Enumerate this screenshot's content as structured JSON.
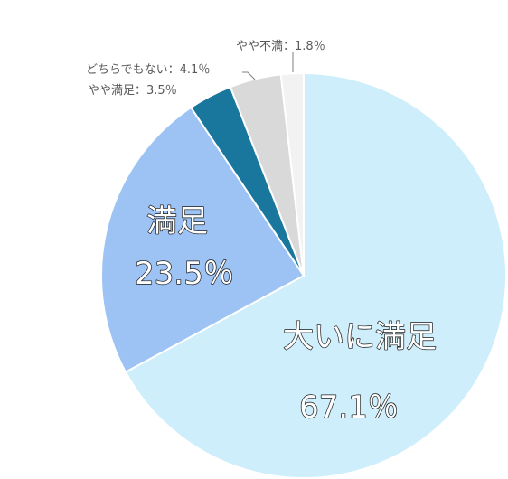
{
  "chart_data": {
    "type": "pie",
    "start_angle_deg": 0,
    "direction": "clockwise",
    "slices": [
      {
        "label": "大いに満足",
        "value": 67.1,
        "display": "67.1％",
        "color": "#cdeefa"
      },
      {
        "label": "満足",
        "value": 23.5,
        "display": "23.5％",
        "color": "#9dc3f4"
      },
      {
        "label": "やや満足",
        "value": 3.5,
        "display": "3.5％",
        "color": "#19769d"
      },
      {
        "label": "どちらでもない",
        "value": 4.1,
        "display": "4.1％",
        "color": "#d9d9d9"
      },
      {
        "label": "やや不満",
        "value": 1.8,
        "display": "1.8％",
        "color": "#f2f2f2"
      }
    ],
    "legend": "none"
  }
}
